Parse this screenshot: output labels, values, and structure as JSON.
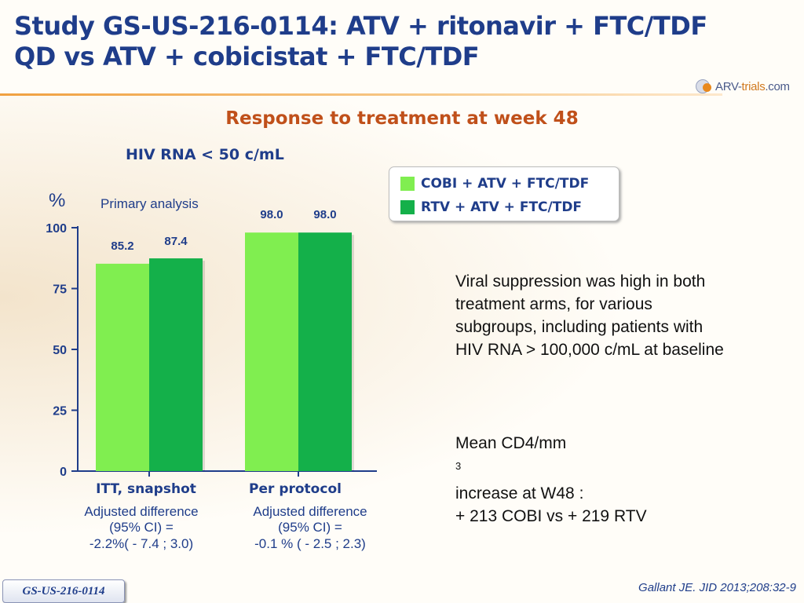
{
  "slide": {
    "title_line1": "Study GS-US-216-0114: ATV + ritonavir + FTC/TDF",
    "title_line2": "QD vs ATV + cobicistat + FTC/TDF",
    "logo_text_a": "ARV-",
    "logo_text_b": "trials",
    "logo_text_c": ".com",
    "subtitle": "Response to treatment at week 48",
    "metric_label": "HIV RNA < 50 c/mL",
    "unit_label": "%",
    "primary_label": "Primary analysis",
    "adjusted": [
      {
        "line1": "Adjusted difference",
        "line2": "(95% CI) =",
        "line3": "-2.2%( - 7.4 ; 3.0)"
      },
      {
        "line1": "Adjusted difference",
        "line2": "(95% CI) =",
        "line3": "-0.1 % ( - 2.5 ; 2.3)"
      }
    ],
    "note1": [
      "Viral suppression was high in both",
      "treatment arms, for various",
      "subgroups, including patients with",
      "HIV RNA > 100,000 c/mL at baseline"
    ],
    "note2_line1_a": "Mean CD4/mm",
    "note2_line1_sup": "3",
    "note2_line1_b": " increase at W48 :",
    "note2_line2": "+ 213 COBI vs + 219 RTV",
    "citation": "Gallant JE. JID 2013;208:32-9",
    "study_tag": "GS-US-216-0114"
  },
  "chart_data": {
    "type": "bar",
    "categories": [
      "ITT, snapshot",
      "Per protocol"
    ],
    "series": [
      {
        "name": "COBI + ATV + FTC/TDF",
        "values": [
          85.2,
          98.0
        ],
        "labels": [
          "85.2",
          "98.0"
        ],
        "color": "#80ee50"
      },
      {
        "name": "RTV + ATV + FTC/TDF",
        "values": [
          87.4,
          98.0
        ],
        "labels": [
          "87.4",
          "98.0"
        ],
        "color": "#14b04a"
      }
    ],
    "ylim": [
      0,
      100
    ],
    "yticks": [
      0,
      25,
      50,
      75,
      100
    ],
    "ylabel": "%",
    "legend_position": "top-right"
  },
  "colors": {
    "title": "#1f3d8a",
    "subtitle": "#c0501a",
    "rule": "#f0a040"
  }
}
